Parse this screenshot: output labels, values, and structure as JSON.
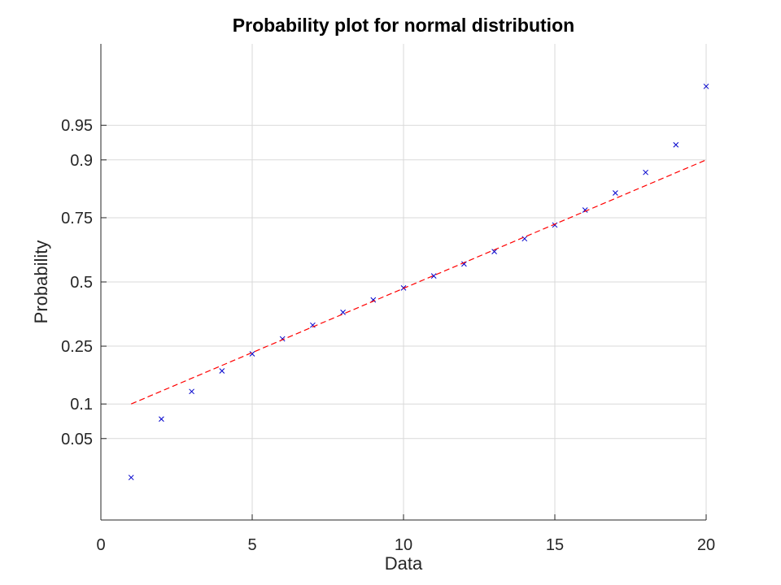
{
  "chart_data": {
    "type": "scatter",
    "title": "Probability plot for normal distribution",
    "xlabel": "Data",
    "ylabel": "Probability",
    "xlim": [
      0,
      20
    ],
    "ylim_z": [
      -2.5,
      2.5
    ],
    "x_ticks": [
      0,
      5,
      10,
      15,
      20
    ],
    "x_tick_labels": [
      "0",
      "5",
      "10",
      "15",
      "20"
    ],
    "y_ticks": [
      0.05,
      0.1,
      0.25,
      0.5,
      0.75,
      0.9,
      0.95
    ],
    "y_tick_labels": [
      "0.05",
      "0.1",
      "0.25",
      "0.5",
      "0.75",
      "0.9",
      "0.95"
    ],
    "grid": true,
    "y_scale": "normal-probability",
    "series": [
      {
        "kind": "points",
        "marker": "x",
        "color": "#0000cc",
        "x": [
          1,
          2,
          3,
          4,
          5,
          6,
          7,
          8,
          9,
          10,
          11,
          12,
          13,
          14,
          15,
          16,
          17,
          18,
          19,
          20
        ],
        "y": [
          0.02,
          0.075,
          0.125,
          0.175,
          0.225,
          0.275,
          0.325,
          0.375,
          0.425,
          0.475,
          0.525,
          0.575,
          0.625,
          0.675,
          0.725,
          0.775,
          0.825,
          0.875,
          0.925,
          0.98
        ]
      },
      {
        "kind": "fit-line",
        "line_style": "dashed",
        "color": "#ff0000",
        "x": [
          1,
          20
        ],
        "y": [
          0.1,
          0.9
        ]
      }
    ]
  }
}
